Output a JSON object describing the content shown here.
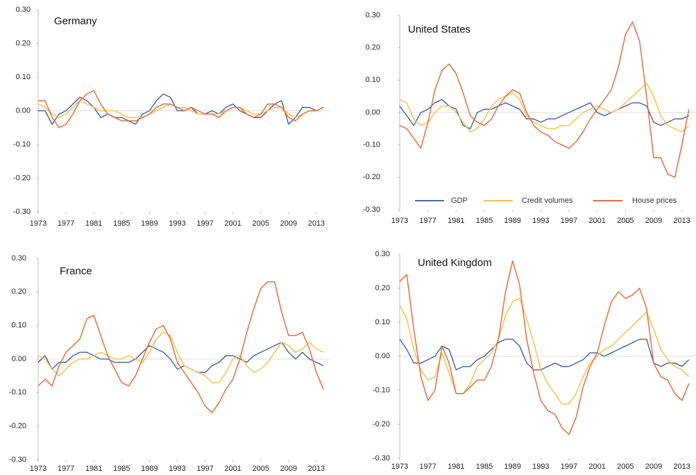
{
  "chart_data": [
    {
      "type": "line",
      "title": "Germany",
      "x": [
        1973,
        1974,
        1975,
        1976,
        1977,
        1978,
        1979,
        1980,
        1981,
        1982,
        1983,
        1984,
        1985,
        1986,
        1987,
        1988,
        1989,
        1990,
        1991,
        1992,
        1993,
        1994,
        1995,
        1996,
        1997,
        1998,
        1999,
        2000,
        2001,
        2002,
        2003,
        2004,
        2005,
        2006,
        2007,
        2008,
        2009,
        2010,
        2011,
        2012,
        2013,
        2014
      ],
      "xlim": [
        1973,
        2015
      ],
      "xticks": [
        1973,
        1977,
        1981,
        1985,
        1989,
        1993,
        1997,
        2001,
        2005,
        2009,
        2013
      ],
      "ylim": [
        -0.3,
        0.3
      ],
      "yticks": [
        {
          "value": 0.3,
          "label": "0.30"
        },
        {
          "value": 0.2,
          "label": "0.20"
        },
        {
          "value": 0.1,
          "label": "0.10"
        },
        {
          "value": 0,
          "label": "0.00"
        },
        {
          "value": -0.1,
          "label": "-0.10"
        },
        {
          "value": -0.2,
          "label": "-0.20"
        },
        {
          "value": -0.3,
          "label": "-0.30"
        }
      ],
      "series": [
        {
          "color": "#4a68a8",
          "values": [
            0.0,
            0.0,
            -0.04,
            -0.01,
            0.0,
            0.02,
            0.04,
            0.03,
            0.01,
            -0.02,
            -0.01,
            -0.02,
            -0.02,
            -0.03,
            -0.04,
            -0.01,
            0.0,
            0.03,
            0.05,
            0.04,
            0.0,
            0.0,
            0.01,
            -0.01,
            -0.01,
            0.0,
            -0.01,
            0.01,
            0.02,
            0.0,
            -0.01,
            -0.02,
            -0.02,
            0.0,
            0.02,
            0.03,
            -0.04,
            -0.02,
            0.01,
            0.01,
            0.0,
            0.01
          ]
        },
        {
          "color": "#f5c24a",
          "values": [
            0.02,
            0.01,
            -0.01,
            -0.02,
            -0.01,
            0.01,
            0.03,
            0.02,
            0.01,
            0.0,
            0.0,
            0.0,
            -0.01,
            -0.02,
            -0.02,
            -0.02,
            -0.01,
            0.0,
            0.01,
            0.02,
            0.01,
            0.01,
            0.0,
            -0.01,
            -0.01,
            -0.01,
            -0.01,
            0.0,
            0.01,
            0.01,
            0.0,
            -0.01,
            -0.01,
            0.0,
            0.01,
            0.01,
            -0.01,
            -0.02,
            -0.01,
            0.0,
            0.0,
            0.01
          ]
        },
        {
          "color": "#ec6a3e",
          "values": [
            0.03,
            0.03,
            -0.02,
            -0.05,
            -0.04,
            -0.01,
            0.03,
            0.05,
            0.06,
            0.02,
            -0.01,
            -0.02,
            -0.03,
            -0.03,
            -0.03,
            -0.02,
            -0.01,
            0.01,
            0.02,
            0.02,
            0.01,
            0.0,
            0.01,
            0.0,
            -0.01,
            -0.01,
            -0.02,
            0.0,
            0.01,
            0.01,
            -0.01,
            -0.02,
            -0.01,
            0.02,
            0.02,
            0.01,
            -0.02,
            -0.03,
            -0.01,
            0.0,
            0.0,
            0.01
          ]
        }
      ]
    },
    {
      "type": "line",
      "title": "United States",
      "legend": "bottom",
      "x": [
        1973,
        1974,
        1975,
        1976,
        1977,
        1978,
        1979,
        1980,
        1981,
        1982,
        1983,
        1984,
        1985,
        1986,
        1987,
        1988,
        1989,
        1990,
        1991,
        1992,
        1993,
        1994,
        1995,
        1996,
        1997,
        1998,
        1999,
        2000,
        2001,
        2002,
        2003,
        2004,
        2005,
        2006,
        2007,
        2008,
        2009,
        2010,
        2011,
        2012,
        2013,
        2014
      ],
      "xlim": [
        1973,
        2015
      ],
      "xticks": [
        1973,
        1977,
        1981,
        1985,
        1989,
        1993,
        1997,
        2001,
        2005,
        2009,
        2013
      ],
      "ylim": [
        -0.3,
        0.3
      ],
      "yticks": [
        {
          "value": 0.3,
          "label": "0.30"
        },
        {
          "value": 0.2,
          "label": "0.20"
        },
        {
          "value": 0.1,
          "label": "0.10"
        },
        {
          "value": 0,
          "label": "0.00"
        },
        {
          "value": -0.1,
          "label": "-0.10"
        },
        {
          "value": -0.2,
          "label": "-0.20"
        },
        {
          "value": -0.3,
          "label": "-0.30"
        }
      ],
      "series": [
        {
          "name": "GDP",
          "color": "#4a68a8",
          "values": [
            0.02,
            -0.01,
            -0.04,
            0.0,
            0.01,
            0.03,
            0.04,
            0.02,
            0.01,
            -0.04,
            -0.05,
            0.0,
            0.01,
            0.01,
            0.02,
            0.03,
            0.02,
            0.01,
            -0.02,
            -0.02,
            -0.03,
            -0.02,
            -0.02,
            -0.01,
            0.0,
            0.01,
            0.02,
            0.03,
            0.0,
            -0.01,
            0.0,
            0.01,
            0.02,
            0.03,
            0.03,
            0.02,
            -0.03,
            -0.04,
            -0.03,
            -0.02,
            -0.02,
            -0.01
          ]
        },
        {
          "name": "Credit volumes",
          "color": "#f5c24a",
          "values": [
            0.04,
            0.03,
            -0.02,
            -0.04,
            -0.03,
            0.0,
            0.02,
            0.02,
            0.0,
            -0.03,
            -0.06,
            -0.05,
            -0.02,
            0.02,
            0.04,
            0.05,
            0.06,
            0.04,
            -0.01,
            -0.03,
            -0.04,
            -0.05,
            -0.05,
            -0.04,
            -0.04,
            -0.02,
            0.0,
            0.01,
            0.02,
            0.01,
            0.0,
            0.01,
            0.03,
            0.05,
            0.07,
            0.09,
            0.05,
            -0.01,
            -0.04,
            -0.05,
            -0.06,
            -0.04
          ]
        },
        {
          "name": "House prices",
          "color": "#ec6a3e",
          "values": [
            -0.04,
            -0.05,
            -0.08,
            -0.11,
            -0.03,
            0.07,
            0.13,
            0.15,
            0.12,
            0.06,
            -0.01,
            -0.03,
            -0.04,
            -0.02,
            0.02,
            0.05,
            0.07,
            0.06,
            0.0,
            -0.04,
            -0.06,
            -0.07,
            -0.09,
            -0.1,
            -0.11,
            -0.09,
            -0.06,
            -0.02,
            0.01,
            0.04,
            0.07,
            0.14,
            0.24,
            0.28,
            0.22,
            0.05,
            -0.14,
            -0.14,
            -0.19,
            -0.2,
            -0.1,
            0.01
          ]
        }
      ]
    },
    {
      "type": "line",
      "title": "France",
      "x": [
        1973,
        1974,
        1975,
        1976,
        1977,
        1978,
        1979,
        1980,
        1981,
        1982,
        1983,
        1984,
        1985,
        1986,
        1987,
        1988,
        1989,
        1990,
        1991,
        1992,
        1993,
        1994,
        1995,
        1996,
        1997,
        1998,
        1999,
        2000,
        2001,
        2002,
        2003,
        2004,
        2005,
        2006,
        2007,
        2008,
        2009,
        2010,
        2011,
        2012,
        2013,
        2014
      ],
      "xlim": [
        1973,
        2015
      ],
      "xticks": [
        1973,
        1977,
        1981,
        1985,
        1989,
        1993,
        1997,
        2001,
        2005,
        2009,
        2013
      ],
      "ylim": [
        -0.3,
        0.3
      ],
      "yticks": [
        {
          "value": 0.3,
          "label": "0.30"
        },
        {
          "value": 0.2,
          "label": "0.20"
        },
        {
          "value": 0.1,
          "label": "0.10"
        },
        {
          "value": 0,
          "label": "0.00"
        },
        {
          "value": -0.1,
          "label": "-0.10"
        },
        {
          "value": -0.2,
          "label": "-0.20"
        },
        {
          "value": -0.3,
          "label": "-0.30"
        }
      ],
      "series": [
        {
          "color": "#4a68a8",
          "values": [
            -0.01,
            0.01,
            -0.03,
            -0.01,
            -0.01,
            0.01,
            0.02,
            0.02,
            0.01,
            0.0,
            0.0,
            -0.01,
            -0.01,
            -0.01,
            0.0,
            0.02,
            0.04,
            0.03,
            0.02,
            0.0,
            -0.03,
            -0.02,
            -0.03,
            -0.04,
            -0.04,
            -0.02,
            -0.01,
            0.01,
            0.01,
            0.0,
            -0.01,
            0.01,
            0.02,
            0.03,
            0.04,
            0.05,
            0.02,
            0.0,
            0.02,
            0.0,
            -0.01,
            -0.02
          ]
        },
        {
          "color": "#f5c24a",
          "values": [
            0.01,
            0.0,
            -0.03,
            -0.05,
            -0.03,
            -0.01,
            0.0,
            0.0,
            0.01,
            0.02,
            0.01,
            0.0,
            0.0,
            0.01,
            0.0,
            -0.01,
            0.02,
            0.06,
            0.08,
            0.07,
            0.02,
            -0.02,
            -0.03,
            -0.04,
            -0.05,
            -0.07,
            -0.07,
            -0.04,
            0.0,
            0.01,
            -0.02,
            -0.04,
            -0.03,
            -0.01,
            0.02,
            0.05,
            0.04,
            0.02,
            0.03,
            0.05,
            0.03,
            0.02
          ]
        },
        {
          "color": "#ec6a3e",
          "values": [
            -0.08,
            -0.06,
            -0.08,
            -0.02,
            0.02,
            0.04,
            0.06,
            0.12,
            0.13,
            0.07,
            0.01,
            -0.03,
            -0.07,
            -0.08,
            -0.05,
            0.0,
            0.05,
            0.09,
            0.1,
            0.06,
            -0.01,
            -0.04,
            -0.07,
            -0.1,
            -0.14,
            -0.16,
            -0.13,
            -0.09,
            -0.06,
            0.0,
            0.08,
            0.15,
            0.21,
            0.23,
            0.23,
            0.14,
            0.07,
            0.07,
            0.08,
            0.03,
            -0.04,
            -0.09
          ]
        }
      ]
    },
    {
      "type": "line",
      "title": "United Kingdom",
      "x": [
        1973,
        1974,
        1975,
        1976,
        1977,
        1978,
        1979,
        1980,
        1981,
        1982,
        1983,
        1984,
        1985,
        1986,
        1987,
        1988,
        1989,
        1990,
        1991,
        1992,
        1993,
        1994,
        1995,
        1996,
        1997,
        1998,
        1999,
        2000,
        2001,
        2002,
        2003,
        2004,
        2005,
        2006,
        2007,
        2008,
        2009,
        2010,
        2011,
        2012,
        2013,
        2014
      ],
      "xlim": [
        1973,
        2015
      ],
      "xticks": [
        1973,
        1977,
        1981,
        1985,
        1989,
        1993,
        1997,
        2001,
        2005,
        2009,
        2013
      ],
      "ylim": [
        -0.3,
        0.3
      ],
      "yticks": [
        {
          "value": 0.3,
          "label": "0.30"
        },
        {
          "value": 0.2,
          "label": "0.20"
        },
        {
          "value": 0.1,
          "label": "0.10"
        },
        {
          "value": 0,
          "label": "0.00"
        },
        {
          "value": -0.1,
          "label": "-0.10"
        },
        {
          "value": -0.2,
          "label": "-0.20"
        },
        {
          "value": -0.3,
          "label": "-0.30"
        }
      ],
      "series": [
        {
          "color": "#4a68a8",
          "values": [
            0.05,
            0.02,
            -0.02,
            -0.02,
            -0.01,
            0.0,
            0.03,
            0.02,
            -0.04,
            -0.03,
            -0.03,
            -0.01,
            0.0,
            0.02,
            0.04,
            0.05,
            0.05,
            0.03,
            -0.02,
            -0.04,
            -0.04,
            -0.03,
            -0.02,
            -0.03,
            -0.03,
            -0.02,
            -0.01,
            0.01,
            0.01,
            0.0,
            0.01,
            0.02,
            0.03,
            0.04,
            0.05,
            0.05,
            -0.02,
            -0.03,
            -0.02,
            -0.02,
            -0.03,
            -0.01
          ]
        },
        {
          "color": "#f5c24a",
          "values": [
            0.15,
            0.11,
            0.02,
            -0.04,
            -0.07,
            -0.06,
            0.01,
            -0.05,
            -0.11,
            -0.11,
            -0.08,
            -0.03,
            -0.01,
            0.01,
            0.05,
            0.12,
            0.16,
            0.17,
            0.11,
            0.04,
            -0.04,
            -0.08,
            -0.11,
            -0.14,
            -0.14,
            -0.11,
            -0.06,
            -0.02,
            0.0,
            0.02,
            0.03,
            0.05,
            0.07,
            0.09,
            0.11,
            0.13,
            0.08,
            0.02,
            -0.01,
            -0.03,
            -0.04,
            -0.06
          ]
        },
        {
          "color": "#ec6a3e",
          "values": [
            0.22,
            0.24,
            0.08,
            -0.06,
            -0.13,
            -0.1,
            0.03,
            -0.02,
            -0.11,
            -0.11,
            -0.09,
            -0.07,
            -0.07,
            -0.03,
            0.05,
            0.19,
            0.28,
            0.21,
            0.05,
            -0.05,
            -0.13,
            -0.16,
            -0.17,
            -0.21,
            -0.23,
            -0.18,
            -0.09,
            -0.03,
            0.01,
            0.09,
            0.16,
            0.19,
            0.17,
            0.18,
            0.2,
            0.14,
            -0.02,
            -0.06,
            -0.07,
            -0.11,
            -0.13,
            -0.08
          ]
        }
      ]
    }
  ]
}
